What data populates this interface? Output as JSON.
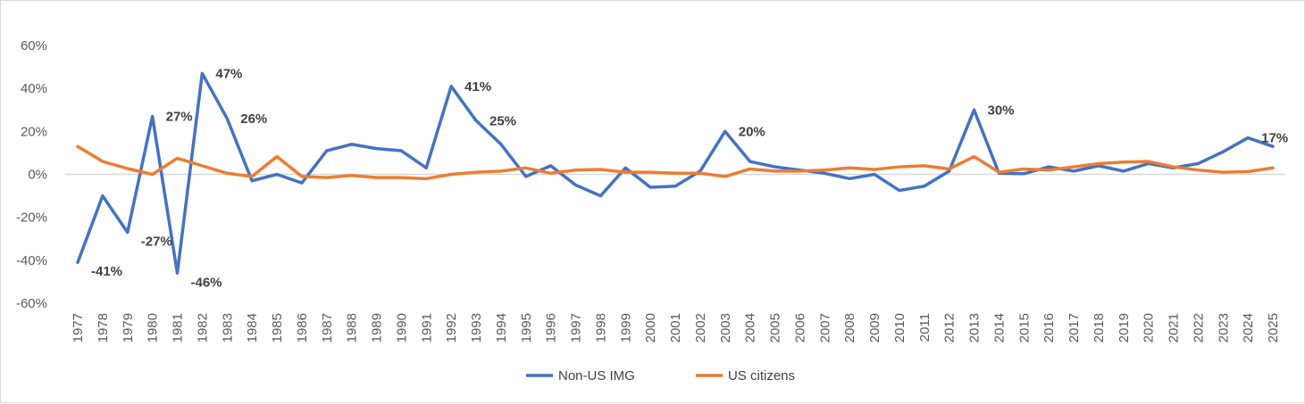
{
  "chart_data": {
    "type": "line",
    "title": "",
    "xlabel": "",
    "ylabel": "",
    "ylim": [
      -60,
      60
    ],
    "y_unit": "%",
    "y_ticks": [
      "60%",
      "40%",
      "20%",
      "0%",
      "-20%",
      "-40%",
      "-60%"
    ],
    "grid": false,
    "legend_position": "bottom",
    "x": [
      1977,
      1978,
      1979,
      1980,
      1981,
      1982,
      1983,
      1984,
      1985,
      1986,
      1987,
      1988,
      1989,
      1990,
      1991,
      1992,
      1993,
      1994,
      1995,
      1996,
      1997,
      1998,
      1999,
      2000,
      2001,
      2002,
      2003,
      2004,
      2005,
      2006,
      2007,
      2008,
      2009,
      2010,
      2011,
      2012,
      2013,
      2014,
      2015,
      2016,
      2017,
      2018,
      2019,
      2020,
      2021,
      2022,
      2023,
      2024,
      2025
    ],
    "series": [
      {
        "name": "Non-US IMG",
        "color": "#4472C4",
        "values": [
          -41,
          -10,
          -27,
          27,
          -46,
          47,
          26,
          -3,
          0,
          -4,
          11,
          14,
          12,
          11,
          3,
          41,
          25,
          14,
          -1,
          4,
          -5,
          -10,
          3,
          -6,
          -5.5,
          1.5,
          20,
          6,
          3.5,
          2,
          0.5,
          -2,
          0,
          -7.5,
          -5.5,
          1.5,
          30,
          0.5,
          0.3,
          3.5,
          1.5,
          4,
          1.5,
          5,
          3,
          5,
          10.5,
          17,
          13
        ],
        "data_labels": [
          {
            "year": 1977,
            "text": "-41%"
          },
          {
            "year": 1979,
            "text": "-27%"
          },
          {
            "year": 1980,
            "text": "27%"
          },
          {
            "year": 1981,
            "text": "-46%"
          },
          {
            "year": 1982,
            "text": "47%"
          },
          {
            "year": 1983,
            "text": "26%"
          },
          {
            "year": 1992,
            "text": "41%"
          },
          {
            "year": 1993,
            "text": "25%"
          },
          {
            "year": 2003,
            "text": "20%"
          },
          {
            "year": 2013,
            "text": "30%"
          },
          {
            "year": 2024,
            "text": "17%"
          }
        ]
      },
      {
        "name": "US citizens",
        "color": "#ED7D31",
        "values": [
          13,
          6,
          2.7,
          0,
          7.5,
          4,
          0.5,
          -1,
          8.3,
          -1,
          -1.5,
          -0.5,
          -1.5,
          -1.5,
          -2,
          0,
          1,
          1.5,
          3,
          0.5,
          2,
          2.3,
          1,
          1,
          0.5,
          0.5,
          -1,
          2.5,
          1.5,
          1.5,
          2,
          3,
          2.3,
          3.5,
          4,
          2.5,
          8.3,
          1,
          2.5,
          2,
          3.5,
          5,
          5.7,
          6,
          3.5,
          2,
          1,
          1.3,
          3
        ]
      }
    ]
  }
}
